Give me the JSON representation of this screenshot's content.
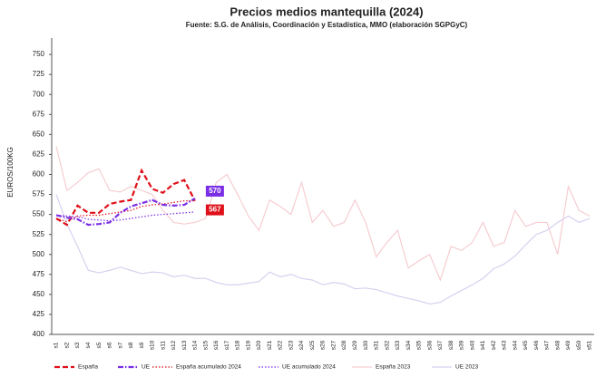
{
  "chart_data": {
    "type": "line",
    "title": "Precios medios mantequilla  (2024)",
    "subtitle": "Fuente: S.G. de Análisis, Coordinación y Estadística, MMO (elaboración SGPGyC)",
    "y_label": "EUROS/100KG",
    "categories": [
      "s1",
      "s2",
      "s3",
      "s4",
      "s5",
      "s6",
      "s7",
      "s8",
      "s9",
      "s10",
      "s11",
      "s12",
      "s13",
      "s14",
      "s15",
      "s16",
      "s17",
      "s18",
      "s19",
      "s20",
      "s21",
      "s22",
      "s23",
      "s24",
      "s25",
      "s26",
      "s27",
      "s28",
      "s29",
      "s30",
      "s31",
      "s32",
      "s33",
      "s34",
      "s35",
      "s36",
      "s37",
      "s38",
      "s39",
      "s40",
      "s41",
      "s42",
      "s43",
      "s44",
      "s45",
      "s46",
      "s47",
      "s48",
      "s49",
      "s50",
      "s51"
    ],
    "ylim": [
      400,
      775
    ],
    "yticks": [
      400,
      425,
      450,
      475,
      500,
      525,
      550,
      575,
      600,
      625,
      650,
      675,
      700,
      725,
      750
    ],
    "grid": false,
    "legend": "bottom",
    "series": [
      {
        "name": "España 2023",
        "color": "#f6cdd1",
        "dash": "solid",
        "values": [
          635,
          580,
          590,
          602,
          607,
          580,
          578,
          585,
          580,
          575,
          555,
          540,
          538,
          540,
          545,
          590,
          600,
          575,
          548,
          530,
          568,
          560,
          550,
          590,
          540,
          555,
          535,
          540,
          568,
          540,
          497,
          515,
          530,
          483,
          492,
          500,
          468,
          510,
          505,
          515,
          540,
          510,
          515,
          555,
          535,
          540,
          540,
          500,
          585,
          555,
          548
        ]
      },
      {
        "name": "UE 2023",
        "color": "#d8d0f0",
        "dash": "solid",
        "values": [
          575,
          538,
          510,
          480,
          477,
          480,
          484,
          480,
          476,
          478,
          477,
          472,
          474,
          470,
          470,
          465,
          462,
          462,
          464,
          466,
          478,
          472,
          475,
          470,
          468,
          462,
          465,
          463,
          457,
          458,
          456,
          452,
          448,
          445,
          442,
          438,
          440,
          448,
          455,
          462,
          470,
          482,
          488,
          498,
          512,
          525,
          530,
          540,
          548,
          540,
          545
        ]
      },
      {
        "name": "España acumulado 2024",
        "color": "#e0101a",
        "dash": "dotted",
        "values": [
          545,
          541,
          548,
          549,
          549,
          551,
          553,
          555,
          560,
          562,
          563,
          565,
          567,
          567,
          null,
          null,
          null,
          null,
          null,
          null,
          null,
          null,
          null,
          null,
          null,
          null,
          null,
          null,
          null,
          null,
          null,
          null,
          null,
          null,
          null,
          null,
          null,
          null,
          null,
          null,
          null,
          null,
          null,
          null,
          null,
          null,
          null,
          null,
          null,
          null,
          null
        ]
      },
      {
        "name": "UE acumulado 2024",
        "color": "#7a2ee6",
        "dash": "dotted",
        "values": [
          549,
          548,
          547,
          544,
          543,
          542,
          543,
          545,
          547,
          549,
          550,
          551,
          552,
          553,
          null,
          null,
          null,
          null,
          null,
          null,
          null,
          null,
          null,
          null,
          null,
          null,
          null,
          null,
          null,
          null,
          null,
          null,
          null,
          null,
          null,
          null,
          null,
          null,
          null,
          null,
          null,
          null,
          null,
          null,
          null,
          null,
          null,
          null,
          null,
          null,
          null
        ]
      },
      {
        "name": "España",
        "color": "#e0101a",
        "dash": "dashed",
        "values": [
          545,
          537,
          561,
          552,
          552,
          563,
          566,
          568,
          605,
          582,
          577,
          588,
          593,
          567,
          null,
          null,
          null,
          null,
          null,
          null,
          null,
          null,
          null,
          null,
          null,
          null,
          null,
          null,
          null,
          null,
          null,
          null,
          null,
          null,
          null,
          null,
          null,
          null,
          null,
          null,
          null,
          null,
          null,
          null,
          null,
          null,
          null,
          null,
          null,
          null,
          null
        ]
      },
      {
        "name": "UE",
        "color": "#7a2ee6",
        "dash": "dashdot",
        "values": [
          549,
          546,
          544,
          537,
          538,
          540,
          552,
          560,
          564,
          568,
          562,
          561,
          562,
          570,
          null,
          null,
          null,
          null,
          null,
          null,
          null,
          null,
          null,
          null,
          null,
          null,
          null,
          null,
          null,
          null,
          null,
          null,
          null,
          null,
          null,
          null,
          null,
          null,
          null,
          null,
          null,
          null,
          null,
          null,
          null,
          null,
          null,
          null,
          null,
          null,
          null
        ]
      }
    ]
  }
}
